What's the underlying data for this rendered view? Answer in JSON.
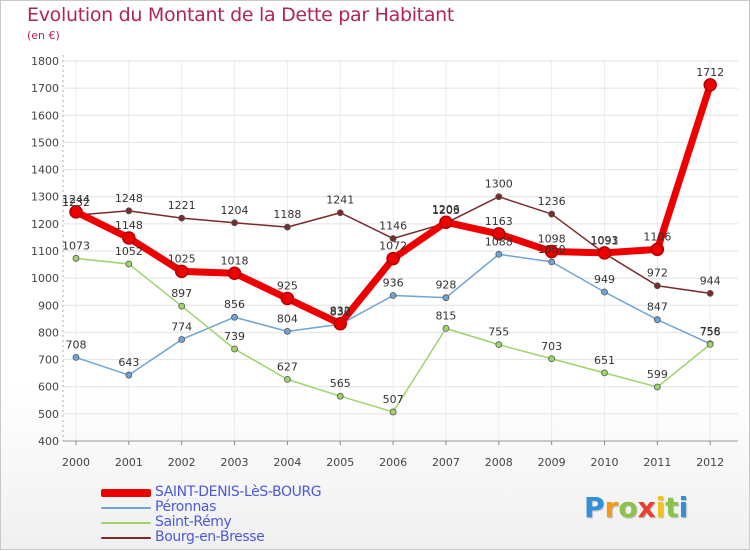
{
  "title": "Evolution du Montant de la Dette par Habitant",
  "unit": "(en €)",
  "brand": {
    "letters": [
      {
        "ch": "P",
        "color": "#2f8fd8"
      },
      {
        "ch": "r",
        "color": "#f29a1e"
      },
      {
        "ch": "o",
        "color": "#8bc34a"
      },
      {
        "ch": "x",
        "color": "#e8402a"
      },
      {
        "ch": "i",
        "color": "#f2c21e"
      },
      {
        "ch": "t",
        "color": "#8bc34a"
      },
      {
        "ch": "i",
        "color": "#2f8fd8"
      }
    ]
  },
  "chart_data": {
    "type": "line",
    "title": "Evolution du Montant de la Dette par Habitant",
    "xlabel": "",
    "ylabel": "(en €)",
    "x": [
      "2000",
      "2001",
      "2002",
      "2003",
      "2004",
      "2005",
      "2006",
      "2007",
      "2008",
      "2009",
      "2010",
      "2011",
      "2012"
    ],
    "ylim": [
      400,
      1800
    ],
    "yticks": [
      400,
      500,
      600,
      700,
      800,
      900,
      1000,
      1100,
      1200,
      1300,
      1400,
      1500,
      1600,
      1700,
      1800
    ],
    "grid": true,
    "legend_position": "bottom",
    "series": [
      {
        "name": "SAINT-DENIS-LèS-BOURG",
        "color": "#ee0000",
        "width": 7,
        "marker": 6,
        "values": [
          1244,
          1148,
          1025,
          1018,
          925,
          832,
          1072,
          1206,
          1163,
          1098,
          1093,
          1106,
          1712
        ],
        "labels": [
          "1244",
          "1148",
          "1025",
          "1018",
          "925",
          "832",
          "1072",
          "1206",
          "1163",
          "1098",
          "1093",
          "1106",
          "1712"
        ]
      },
      {
        "name": "Péronnas",
        "color": "#6fa4d6",
        "width": 1.5,
        "marker": 3,
        "values": [
          708,
          643,
          774,
          856,
          804,
          830,
          936,
          928,
          1088,
          1060,
          949,
          847,
          758
        ],
        "labels": [
          "708",
          "643",
          "774",
          "856",
          "804",
          "830",
          "936",
          "928",
          "1088",
          "1060",
          "949",
          "847",
          "758"
        ]
      },
      {
        "name": "Saint-Rémy",
        "color": "#9ed46a",
        "width": 1.5,
        "marker": 3,
        "values": [
          1073,
          1052,
          897,
          739,
          627,
          565,
          507,
          815,
          755,
          703,
          651,
          599,
          756
        ],
        "labels": [
          "1073",
          "1052",
          "897",
          "739",
          "627",
          "565",
          "507",
          "815",
          "755",
          "703",
          "651",
          "599",
          "756"
        ]
      },
      {
        "name": "Bourg-en-Bresse",
        "color": "#7a2a2a",
        "width": 1.5,
        "marker": 3,
        "values": [
          1232,
          1248,
          1221,
          1204,
          1188,
          1241,
          1146,
          1203,
          1300,
          1236,
          1091,
          972,
          944
        ],
        "labels": [
          "1232",
          "1248",
          "1221",
          "1204",
          "1188",
          "1241",
          "1146",
          "1203",
          "1300",
          "1236",
          "1091",
          "972",
          "944"
        ]
      }
    ]
  }
}
